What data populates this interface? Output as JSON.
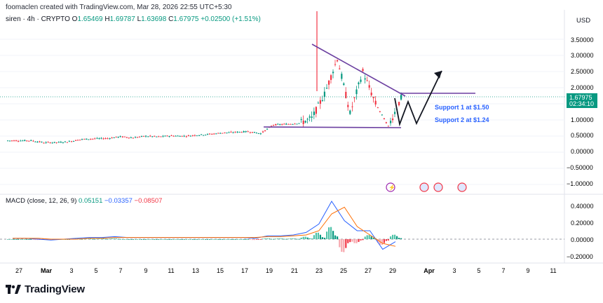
{
  "header": {
    "author": "foomaclen created with TradingView.com, Mar 28, 2026 22:55 UTC+5:30",
    "symbol": "siren · 4h · CRYPTO",
    "o_label": "O",
    "o_value": "1.65469",
    "h_label": "H",
    "h_value": "1.69787",
    "l_label": "L",
    "l_value": "1.63698",
    "c_label": "C",
    "c_value": "1.67975",
    "change": "+0.02500 (+1.51%)"
  },
  "price_axis": {
    "currency": "USD",
    "ticks": [
      "3.50000",
      "3.00000",
      "2.50000",
      "2.00000",
      "1.50000",
      "1.00000",
      "0.50000",
      "0.00000",
      "−0.50000",
      "−1.00000"
    ],
    "last_price": "1.67975",
    "countdown": "02:34:10"
  },
  "macd": {
    "title": "MACD (close, 12, 26, 9)",
    "histogram": "0.05151",
    "macd": "−0.03357",
    "signal": "−0.08507",
    "ticks": [
      "0.40000",
      "0.20000",
      "0.00000",
      "−0.20000"
    ]
  },
  "time_axis": {
    "labels": [
      "27",
      "Mar",
      "3",
      "5",
      "7",
      "9",
      "11",
      "13",
      "15",
      "17",
      "19",
      "21",
      "23",
      "25",
      "27",
      "29",
      "Apr",
      "3",
      "5",
      "7",
      "9",
      "11"
    ]
  },
  "annotations": {
    "support1": "Support 1 at $1.50",
    "support2": "Support 2 at $1.24"
  },
  "footer": {
    "brand": "TradingView"
  },
  "colors": {
    "up": "#089981",
    "down": "#f23645",
    "macd_line": "#2962ff",
    "signal_line": "#ff6d00",
    "drawing": "#6b3fa0",
    "support_text": "#2962ff"
  },
  "chart_data": {
    "type": "candlestick",
    "timeframe": "4h",
    "ylim": [
      -1.1,
      3.95
    ],
    "x": [
      "Feb 26",
      "Feb 27",
      "Feb 28",
      "Mar 1",
      "Mar 2",
      "Mar 3",
      "Mar 4",
      "Mar 5",
      "Mar 6",
      "Mar 7",
      "Mar 8",
      "Mar 9",
      "Mar 10",
      "Mar 11",
      "Mar 12",
      "Mar 13",
      "Mar 14",
      "Mar 15",
      "Mar 16",
      "Mar 17",
      "Mar 18",
      "Mar 19",
      "Mar 20",
      "Mar 21",
      "Mar 22",
      "Mar 23",
      "Mar 24",
      "Mar 25",
      "Mar 26",
      "Mar 27",
      "Mar 28"
    ],
    "close": [
      0.36,
      0.36,
      0.3,
      0.3,
      0.33,
      0.4,
      0.42,
      0.43,
      0.48,
      0.45,
      0.5,
      0.48,
      0.51,
      0.5,
      0.53,
      0.56,
      0.6,
      0.62,
      0.64,
      0.58,
      0.85,
      0.87,
      0.9,
      1.05,
      1.8,
      2.9,
      1.2,
      2.5,
      1.5,
      0.8,
      1.68
    ],
    "macd": {
      "hist_final": 0.05151,
      "macd_series": [
        0.01,
        0.01,
        0.0,
        -0.01,
        0.0,
        0.01,
        0.02,
        0.02,
        0.03,
        0.02,
        0.02,
        0.02,
        0.02,
        0.02,
        0.02,
        0.02,
        0.02,
        0.02,
        0.02,
        0.01,
        0.04,
        0.04,
        0.05,
        0.08,
        0.18,
        0.45,
        0.22,
        0.1,
        0.1,
        -0.12,
        -0.03
      ],
      "signal_series": [
        0.01,
        0.01,
        0.01,
        0.0,
        0.0,
        0.0,
        0.01,
        0.01,
        0.02,
        0.02,
        0.02,
        0.02,
        0.02,
        0.02,
        0.02,
        0.02,
        0.02,
        0.02,
        0.02,
        0.02,
        0.03,
        0.03,
        0.04,
        0.05,
        0.1,
        0.3,
        0.38,
        0.15,
        0.05,
        -0.05,
        -0.085
      ]
    }
  }
}
